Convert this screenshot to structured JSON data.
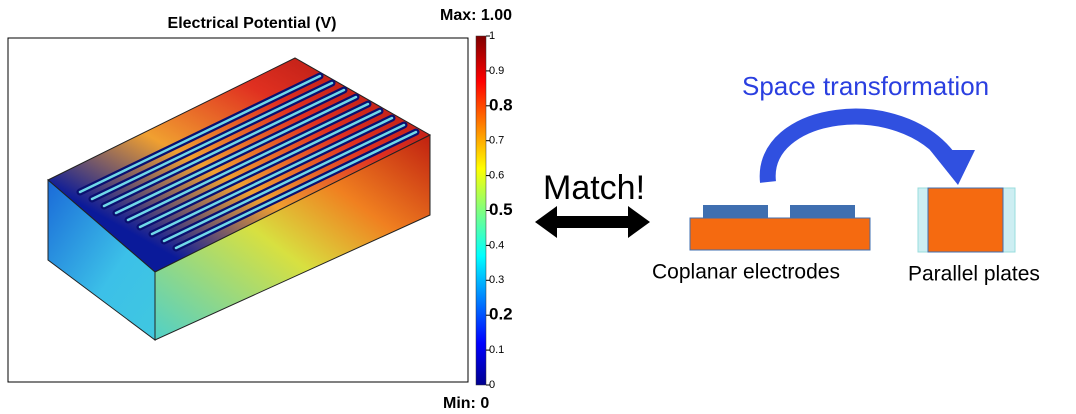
{
  "left_panel": {
    "title": "Electrical Potential (V)",
    "max_label": "Max: 1.00",
    "min_label": "Min: 0",
    "colorbar": {
      "range": [
        0,
        1
      ],
      "minor_ticks": [
        0,
        0.1,
        0.3,
        0.4,
        0.6,
        0.7,
        0.9,
        1
      ],
      "major_ticks": [
        0.2,
        0.5,
        0.8
      ]
    }
  },
  "match": {
    "label": "Match!"
  },
  "right_panel": {
    "title": "Space transformation",
    "left_label": "Coplanar electrodes",
    "right_label": "Parallel plates"
  }
}
